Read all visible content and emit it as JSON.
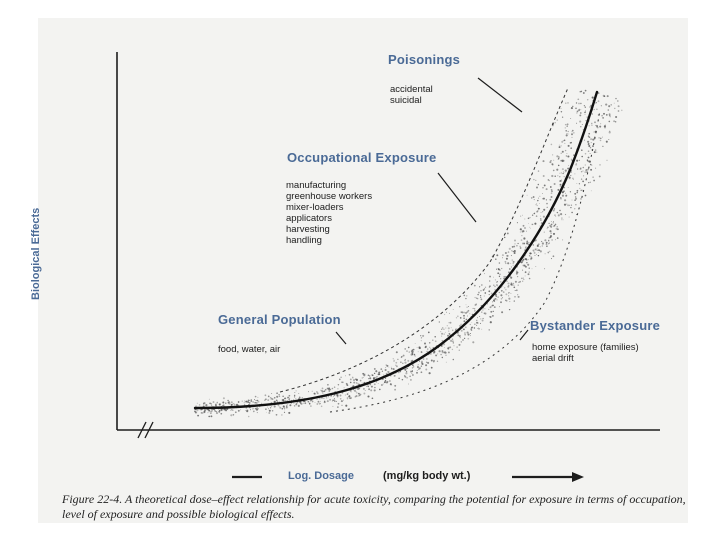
{
  "diagram": {
    "y_axis_label": "Biological Effects",
    "x_axis_label": "Log. Dosage",
    "x_axis_unit": "(mg/kg body wt.)",
    "groups": {
      "poisonings": {
        "title": "Poisonings",
        "items": [
          "accidental",
          "suicidal"
        ]
      },
      "occupational": {
        "title": "Occupational Exposure",
        "items": [
          "manufacturing",
          "greenhouse workers",
          "mixer-loaders",
          "applicators",
          "harvesting",
          "handling"
        ]
      },
      "general": {
        "title": "General Population",
        "items": [
          "food, water, air"
        ]
      },
      "bystander": {
        "title": "Bystander Exposure",
        "items": [
          "home exposure (families)",
          "aerial drift"
        ]
      }
    },
    "caption": "Figure 22-4. A theoretical dose–effect relationship for acute toxicity, comparing the potential for exposure in terms of occupation, level of exposure and possible biological effects.",
    "colors": {
      "heading": "#4a6a96",
      "ink": "#1d1d1d",
      "stipple": "#555555"
    }
  }
}
